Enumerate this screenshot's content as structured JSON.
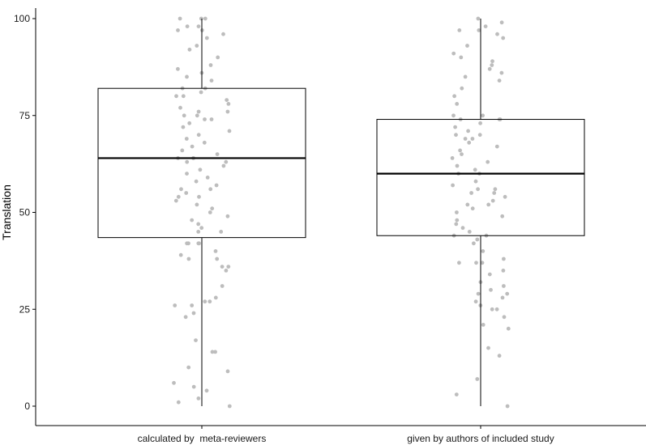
{
  "chart_data": {
    "type": "boxplot",
    "title": "",
    "xlabel": "",
    "ylabel": "Translation",
    "ylim": [
      0,
      100
    ],
    "yticks": [
      0,
      25,
      50,
      75,
      100
    ],
    "grid": false,
    "categories": [
      "calculated by  meta-reviewers",
      "given by authors of included study"
    ],
    "boxes": [
      {
        "q1": 43.5,
        "median": 64,
        "q3": 82,
        "whisker_low": 0,
        "whisker_high": 100
      },
      {
        "q1": 44,
        "median": 60,
        "q3": 74,
        "whisker_low": 0,
        "whisker_high": 100
      }
    ],
    "points": [
      [
        100,
        100,
        100,
        98,
        98,
        97,
        97,
        96,
        95,
        93,
        92,
        90,
        88,
        87,
        86,
        85,
        84,
        82,
        82,
        81,
        80,
        80,
        79,
        78,
        77,
        76,
        76,
        75,
        75,
        74,
        74,
        73,
        72,
        71,
        70,
        69,
        68,
        67,
        66,
        65,
        64,
        64,
        64,
        63,
        63,
        62,
        61,
        60,
        59,
        58,
        57,
        56,
        56,
        55,
        54,
        54,
        53,
        52,
        51,
        50,
        49,
        48,
        47,
        46,
        45,
        45,
        42,
        42,
        42,
        42,
        40,
        39,
        38,
        38,
        36,
        36,
        35,
        31,
        28,
        27,
        27,
        26,
        26,
        24,
        23,
        17,
        14,
        14,
        10,
        9,
        6,
        5,
        4,
        2,
        1,
        0
      ],
      [
        100,
        99,
        98,
        97,
        97,
        96,
        95,
        93,
        91,
        90,
        89,
        88,
        87,
        86,
        85,
        84,
        82,
        80,
        78,
        75,
        75,
        74,
        74,
        74,
        73,
        72,
        71,
        70,
        70,
        69,
        69,
        68,
        67,
        66,
        65,
        64,
        63,
        62,
        61,
        60,
        60,
        58,
        57,
        56,
        56,
        55,
        55,
        54,
        53,
        52,
        52,
        51,
        50,
        49,
        48,
        47,
        46,
        45,
        44,
        44,
        43,
        42,
        40,
        38,
        37,
        37,
        37,
        35,
        34,
        32,
        31,
        30,
        29,
        29,
        28,
        27,
        26,
        25,
        25,
        23,
        21,
        20,
        15,
        13,
        7,
        3,
        0
      ]
    ],
    "point_color": "#bdbdbd",
    "box_stroke": "#000000",
    "box_fill": "#ffffff"
  }
}
